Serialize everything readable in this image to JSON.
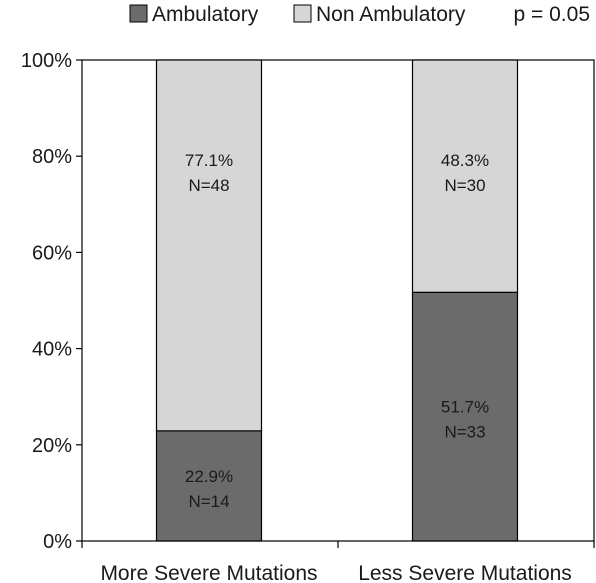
{
  "chart_data": {
    "type": "bar",
    "stacked": true,
    "percent": true,
    "categories": [
      "More Severe Mutations",
      "Less Severe Mutations"
    ],
    "series": [
      {
        "name": "Ambulatory",
        "color": "#6b6b6b",
        "values": [
          22.9,
          51.7
        ],
        "labels": [
          "22.9%",
          "51.7%"
        ],
        "counts": [
          "N=14",
          "N=33"
        ]
      },
      {
        "name": "Non Ambulatory",
        "color": "#d6d6d6",
        "values": [
          77.1,
          48.3
        ],
        "labels": [
          "77.1%",
          "48.3%"
        ],
        "counts": [
          "N=48",
          "N=30"
        ]
      }
    ],
    "ylim": [
      0,
      100
    ],
    "yticks": [
      "0%",
      "20%",
      "40%",
      "60%",
      "80%",
      "100%"
    ],
    "annotation": "p = 0.05",
    "legend_position": "top",
    "grid": false,
    "title": "",
    "xlabel": "",
    "ylabel": ""
  }
}
